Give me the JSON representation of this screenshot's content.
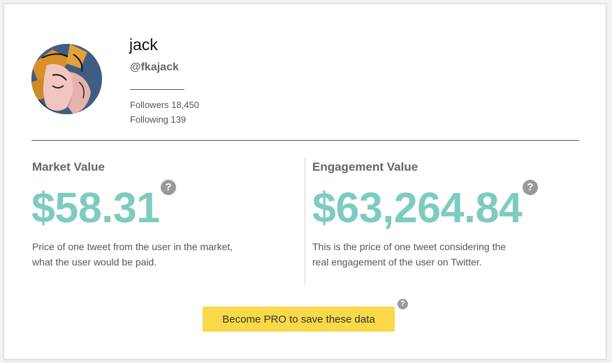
{
  "profile": {
    "name": "jack",
    "handle": "@fkajack",
    "followers": "Followers 18,450",
    "following": "Following 139"
  },
  "market": {
    "title": "Market Value",
    "value": "$58.31",
    "description_line1": "Price of one tweet from the user in the market,",
    "description_line2": "what the user would be paid."
  },
  "engagement": {
    "title": "Engagement Value",
    "value": "$63,264.84",
    "description_line1": "This is the price of one tweet considering the",
    "description_line2": "real engagement of the user on Twitter."
  },
  "help_glyph": "?",
  "pro_button_label": "Become PRO to save these data",
  "colors": {
    "accent_value": "#7ecbc0",
    "button": "#f9d84a",
    "help_icon": "#999999"
  }
}
